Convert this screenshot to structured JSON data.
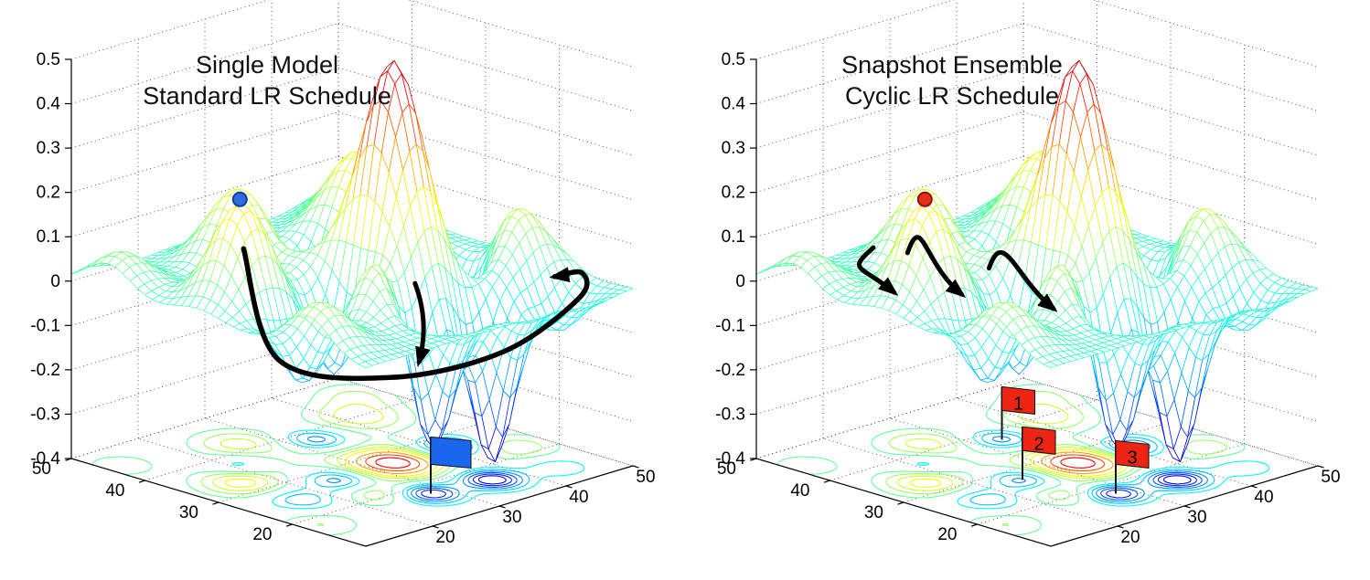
{
  "background": "#ffffff",
  "chart_data": {
    "type": "surface",
    "subtype": "3d-mesh-surface-with-floor-contour",
    "colormap": "jet",
    "color_range": [
      -0.4,
      0.55
    ],
    "xlim": [
      10,
      50
    ],
    "ylim": [
      10,
      50
    ],
    "zlim": [
      -0.4,
      0.5
    ],
    "xticks": [
      20,
      30,
      40,
      50
    ],
    "yticks": [
      20,
      30,
      40,
      50
    ],
    "zticks": [
      -0.4,
      -0.3,
      -0.2,
      -0.1,
      0,
      0.1,
      0.2,
      0.3,
      0.4,
      0.5
    ],
    "grid": true,
    "mesh_step": 1,
    "contour_levels": [
      -0.3,
      -0.25,
      -0.2,
      -0.15,
      -0.1,
      -0.05,
      0.05,
      0.1,
      0.15,
      0.2,
      0.28,
      0.36,
      0.44
    ],
    "surface_bumps": [
      [
        33,
        27,
        0.43,
        3.1
      ],
      [
        30,
        29,
        0.09,
        7.5
      ],
      [
        16.5,
        33,
        0.22,
        3.0
      ],
      [
        26,
        42,
        0.16,
        3.2
      ],
      [
        42,
        40,
        0.18,
        3.4
      ],
      [
        46,
        22,
        0.14,
        3.0
      ],
      [
        24,
        21,
        0.12,
        2.6
      ],
      [
        12,
        18,
        0.1,
        3.0
      ],
      [
        24.5,
        27,
        -0.24,
        2.6
      ],
      [
        28,
        17.5,
        -0.34,
        2.3
      ],
      [
        36,
        16.5,
        -0.38,
        2.3
      ],
      [
        41,
        27,
        -0.26,
        2.6
      ],
      [
        33,
        37.5,
        -0.22,
        2.5
      ],
      [
        17,
        25,
        -0.16,
        2.6
      ],
      [
        44,
        15,
        -0.1,
        2.5
      ],
      [
        21,
        37,
        -0.12,
        2.4
      ],
      [
        47,
        45,
        0.1,
        3.0
      ],
      [
        12,
        45,
        0.08,
        3.0
      ]
    ],
    "panels": [
      {
        "title_line1": "Single Model",
        "title_line2": "Standard LR Schedule",
        "path_color": "#000000",
        "flag_label_color": "#4a0400",
        "start_marker": {
          "x": 16.5,
          "y": 33,
          "color": "#2f6bdf",
          "edge_color": "#0a3f9f"
        },
        "loop_path": [
          [
            16.5,
            32.5,
            0.13
          ],
          [
            13.5,
            25,
            -0.07
          ],
          [
            24,
            19.5,
            -0.13
          ],
          [
            36,
            15,
            -0.105
          ],
          [
            48,
            15.5,
            -0.04
          ],
          [
            49,
            16,
            0.01
          ],
          [
            46,
            17,
            0.01
          ]
        ],
        "descent_arrow": [
          [
            29.5,
            21,
            0.05
          ],
          [
            29,
            20,
            -0.12
          ]
        ],
        "flags": [
          {
            "x": 28,
            "y": 17.5,
            "label": "",
            "color": "#1a66ee"
          }
        ]
      },
      {
        "title_line1": "Snapshot Ensemble",
        "title_line2": "Cyclic LR Schedule",
        "path_color": "#000000",
        "flag_label_color": "#4a0400",
        "start_marker": {
          "x": 16.5,
          "y": 33,
          "color": "#e63119",
          "edge_color": "#8f1005"
        },
        "hops": [
          {
            "from": [
              11,
              35,
              0.145
            ],
            "to": [
              13,
              34,
              0.04
            ],
            "style": "hook"
          },
          {
            "from": [
              15,
              34,
              0.12
            ],
            "to": [
              22,
              33,
              0.0
            ],
            "style": "arc"
          },
          {
            "from": [
              25,
              32,
              0.05
            ],
            "to": [
              33,
              30.5,
              -0.07
            ],
            "style": "arc"
          }
        ],
        "flags": [
          {
            "x": 33,
            "y": 37.5,
            "label": "1",
            "color": "#ee2414"
          },
          {
            "x": 24.5,
            "y": 27,
            "label": "2",
            "color": "#ee2414"
          },
          {
            "x": 28,
            "y": 17.5,
            "label": "3",
            "color": "#ee2414"
          }
        ]
      }
    ]
  }
}
